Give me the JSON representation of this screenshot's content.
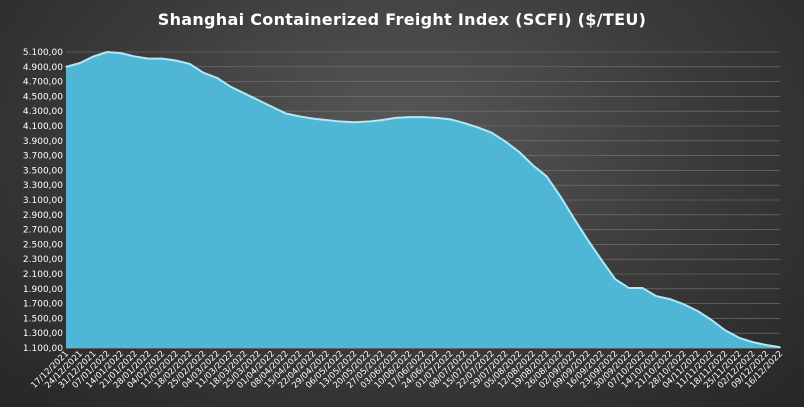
{
  "chart_data": {
    "type": "area",
    "title": "Shanghai  Containerized Freight Index  (SCFI) ($/TEU)",
    "xlabel": "",
    "ylabel": "",
    "ylim": [
      1100,
      5100
    ],
    "yticks": [
      "1.100,00",
      "1.300,00",
      "1.500,00",
      "1.700,00",
      "1.900,00",
      "2.100,00",
      "2.300,00",
      "2.500,00",
      "2.700,00",
      "2.900,00",
      "3.100,00",
      "3.300,00",
      "3.500,00",
      "3.700,00",
      "3.900,00",
      "4.100,00",
      "4.300,00",
      "4.500,00",
      "4.700,00",
      "4.900,00",
      "5.100,00"
    ],
    "grid": true,
    "legend": "none",
    "colors": {
      "fill": "#4fb6d6",
      "edge": "#a8ecfb",
      "grid": "#777777",
      "text": "#ffffff"
    },
    "categories": [
      "17/12/2021",
      "24/12/2021",
      "31/12/2021",
      "07/01/2022",
      "14/01/2022",
      "21/01/2022",
      "28/01/2022",
      "04/02/2022",
      "11/02/2022",
      "18/02/2022",
      "25/02/2022",
      "04/03/2022",
      "11/03/2022",
      "18/03/2022",
      "25/03/2022",
      "01/04/2022",
      "08/04/2022",
      "15/04/2022",
      "22/04/2022",
      "29/04/2022",
      "06/05/2022",
      "13/05/2022",
      "20/05/2022",
      "27/05/2022",
      "03/06/2022",
      "10/06/2022",
      "17/06/2022",
      "24/06/2022",
      "01/07/2022",
      "08/07/2022",
      "15/07/2022",
      "22/07/2022",
      "29/07/2022",
      "05/08/2022",
      "12/08/2022",
      "19/08/2022",
      "26/08/2022",
      "02/09/2022",
      "09/09/2022",
      "16/09/2022",
      "23/09/2022",
      "30/09/2022",
      "07/10/2022",
      "14/10/2022",
      "21/10/2022",
      "28/10/2022",
      "04/11/2022",
      "11/11/2022",
      "18/11/2022",
      "25/11/2022",
      "02/12/2022",
      "09/12/2022",
      "16/12/2022"
    ],
    "series": [
      {
        "values": [
          4900,
          4950,
          5040,
          5100,
          5085,
          5040,
          5010,
          5010,
          4985,
          4940,
          4820,
          4750,
          4630,
          4540,
          4450,
          4360,
          4270,
          4230,
          4200,
          4180,
          4160,
          4150,
          4160,
          4180,
          4210,
          4220,
          4220,
          4210,
          4190,
          4140,
          4080,
          4010,
          3890,
          3750,
          3570,
          3420,
          3150,
          2850,
          2560,
          2290,
          2030,
          1910,
          1910,
          1800,
          1760,
          1690,
          1600,
          1480,
          1340,
          1240,
          1180,
          1140,
          1110
        ]
      }
    ]
  }
}
